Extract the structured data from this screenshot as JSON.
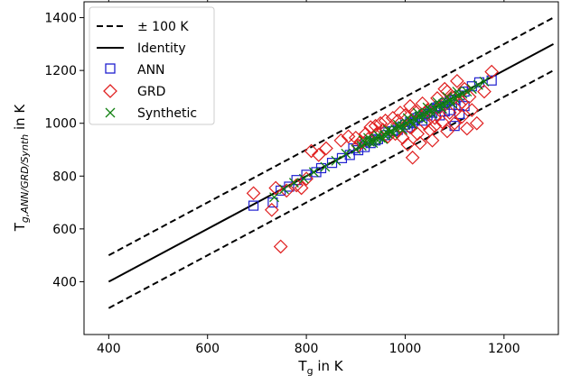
{
  "chart_data": {
    "type": "scatter",
    "title": "",
    "xlabel": "T",
    "xlabel_sub": "g",
    "xlabel_suffix": " in K",
    "ylabel": "T",
    "ylabel_sub": "g,ANN/GRD/Synth",
    "ylabel_suffix": " in K",
    "xlim": [
      350,
      1310
    ],
    "ylim": [
      200,
      1460
    ],
    "xticks": [
      400,
      600,
      800,
      1000,
      1200
    ],
    "yticks": [
      400,
      600,
      800,
      1000,
      1200,
      1400
    ],
    "xtick_labels": [
      "400",
      "600",
      "800",
      "1000",
      "1200"
    ],
    "ytick_labels": [
      "400",
      "600",
      "800",
      "1000",
      "1200",
      "1400"
    ],
    "grid": false,
    "legend_position": "top-left",
    "legend": [
      {
        "key": "band",
        "label": "± 100 K"
      },
      {
        "key": "identity",
        "label": "Identity"
      },
      {
        "key": "ann",
        "label": "ANN"
      },
      {
        "key": "grd",
        "label": "GRD"
      },
      {
        "key": "synth",
        "label": "Synthetic"
      }
    ],
    "lines": [
      {
        "name": "± 100 K",
        "style": "dashed",
        "x": [
          400,
          1300
        ],
        "y": [
          500,
          1400
        ]
      },
      {
        "name": "± 100 K",
        "style": "dashed",
        "x": [
          400,
          1300
        ],
        "y": [
          300,
          1200
        ]
      },
      {
        "name": "Identity",
        "style": "solid",
        "x": [
          400,
          1300
        ],
        "y": [
          400,
          1300
        ]
      }
    ],
    "series": [
      {
        "name": "ANN",
        "marker": "square",
        "color": "#1f1fd0",
        "points": [
          [
            693,
            688
          ],
          [
            732,
            700
          ],
          [
            748,
            745
          ],
          [
            765,
            760
          ],
          [
            780,
            785
          ],
          [
            800,
            805
          ],
          [
            820,
            815
          ],
          [
            830,
            830
          ],
          [
            852,
            850
          ],
          [
            872,
            868
          ],
          [
            888,
            880
          ],
          [
            905,
            898
          ],
          [
            918,
            910
          ],
          [
            930,
            925
          ],
          [
            945,
            940
          ],
          [
            960,
            955
          ],
          [
            975,
            970
          ],
          [
            990,
            985
          ],
          [
            1000,
            995
          ],
          [
            1010,
            1005
          ],
          [
            1020,
            1012
          ],
          [
            1030,
            1025
          ],
          [
            1040,
            1035
          ],
          [
            1050,
            1045
          ],
          [
            1060,
            1055
          ],
          [
            1070,
            1065
          ],
          [
            1080,
            1075
          ],
          [
            1090,
            1085
          ],
          [
            1100,
            1090
          ],
          [
            1110,
            1105
          ],
          [
            1120,
            1120
          ],
          [
            1135,
            1140
          ],
          [
            1150,
            1155
          ],
          [
            1175,
            1162
          ],
          [
            1005,
            985
          ],
          [
            1015,
            1000
          ],
          [
            1035,
            1010
          ],
          [
            1055,
            1040
          ],
          [
            1095,
            1070
          ],
          [
            1110,
            1035
          ],
          [
            1100,
            990
          ],
          [
            1070,
            1030
          ],
          [
            1080,
            1045
          ],
          [
            960,
            965
          ],
          [
            985,
            975
          ],
          [
            1025,
            1020
          ],
          [
            1045,
            1030
          ],
          [
            920,
            930
          ],
          [
            940,
            935
          ],
          [
            895,
            905
          ],
          [
            1065,
            1060
          ],
          [
            1090,
            1050
          ],
          [
            1120,
            1065
          ]
        ]
      },
      {
        "name": "GRD",
        "marker": "diamond",
        "color": "#e02020",
        "points": [
          [
            693,
            735
          ],
          [
            730,
            672
          ],
          [
            738,
            755
          ],
          [
            748,
            533
          ],
          [
            760,
            745
          ],
          [
            780,
            765
          ],
          [
            790,
            755
          ],
          [
            800,
            790
          ],
          [
            810,
            895
          ],
          [
            825,
            880
          ],
          [
            840,
            905
          ],
          [
            870,
            935
          ],
          [
            885,
            950
          ],
          [
            900,
            945
          ],
          [
            910,
            930
          ],
          [
            920,
            960
          ],
          [
            930,
            985
          ],
          [
            940,
            990
          ],
          [
            950,
            1000
          ],
          [
            960,
            1010
          ],
          [
            965,
            950
          ],
          [
            975,
            1020
          ],
          [
            980,
            960
          ],
          [
            990,
            1040
          ],
          [
            995,
            945
          ],
          [
            1000,
            1030
          ],
          [
            1005,
            920
          ],
          [
            1010,
            985
          ],
          [
            1015,
            870
          ],
          [
            1020,
            1045
          ],
          [
            1025,
            960
          ],
          [
            1030,
            925
          ],
          [
            1040,
            1000
          ],
          [
            1045,
            1050
          ],
          [
            1050,
            975
          ],
          [
            1055,
            935
          ],
          [
            1060,
            1020
          ],
          [
            1065,
            1095
          ],
          [
            1070,
            1060
          ],
          [
            1075,
            1005
          ],
          [
            1080,
            1130
          ],
          [
            1085,
            970
          ],
          [
            1090,
            1040
          ],
          [
            1095,
            1100
          ],
          [
            1100,
            1000
          ],
          [
            1105,
            1160
          ],
          [
            1110,
            1070
          ],
          [
            1115,
            1025
          ],
          [
            1120,
            1130
          ],
          [
            1125,
            980
          ],
          [
            1130,
            1100
          ],
          [
            1135,
            1050
          ],
          [
            1145,
            1000
          ],
          [
            1160,
            1120
          ],
          [
            1175,
            1195
          ],
          [
            1115,
            1080
          ],
          [
            1085,
            1120
          ],
          [
            1060,
            990
          ],
          [
            1035,
            1075
          ],
          [
            1010,
            1065
          ],
          [
            985,
            1010
          ],
          [
            955,
            975
          ],
          [
            945,
            960
          ],
          [
            925,
            940
          ],
          [
            905,
            915
          ]
        ]
      },
      {
        "name": "Synthetic",
        "marker": "x",
        "color": "#108010",
        "points": [
          [
            735,
            720
          ],
          [
            755,
            750
          ],
          [
            775,
            775
          ],
          [
            795,
            790
          ],
          [
            815,
            815
          ],
          [
            838,
            835
          ],
          [
            860,
            858
          ],
          [
            880,
            885
          ],
          [
            900,
            902
          ],
          [
            912,
            915
          ],
          [
            920,
            925
          ],
          [
            928,
            930
          ],
          [
            935,
            935
          ],
          [
            942,
            940
          ],
          [
            950,
            945
          ],
          [
            958,
            955
          ],
          [
            965,
            960
          ],
          [
            972,
            970
          ],
          [
            980,
            978
          ],
          [
            988,
            985
          ],
          [
            995,
            990
          ],
          [
            1003,
            1000
          ],
          [
            1012,
            1008
          ],
          [
            1020,
            1015
          ],
          [
            1028,
            1025
          ],
          [
            1036,
            1032
          ],
          [
            1044,
            1040
          ],
          [
            1052,
            1050
          ],
          [
            1060,
            1055
          ],
          [
            1068,
            1065
          ],
          [
            1076,
            1072
          ],
          [
            1084,
            1080
          ],
          [
            1092,
            1088
          ],
          [
            1100,
            1095
          ],
          [
            1108,
            1105
          ],
          [
            1116,
            1112
          ],
          [
            1125,
            1120
          ],
          [
            1135,
            1130
          ],
          [
            1148,
            1145
          ],
          [
            1160,
            1158
          ],
          [
            915,
            935
          ],
          [
            925,
            945
          ],
          [
            935,
            925
          ],
          [
            945,
            955
          ],
          [
            955,
            940
          ],
          [
            965,
            975
          ],
          [
            975,
            960
          ],
          [
            985,
            995
          ],
          [
            995,
            975
          ],
          [
            1005,
            1020
          ],
          [
            1015,
            995
          ],
          [
            1025,
            1040
          ],
          [
            1035,
            1015
          ],
          [
            1045,
            1060
          ],
          [
            1055,
            1035
          ],
          [
            1065,
            1080
          ],
          [
            1075,
            1055
          ],
          [
            1085,
            1100
          ],
          [
            1095,
            1075
          ],
          [
            1105,
            1120
          ]
        ]
      }
    ]
  }
}
